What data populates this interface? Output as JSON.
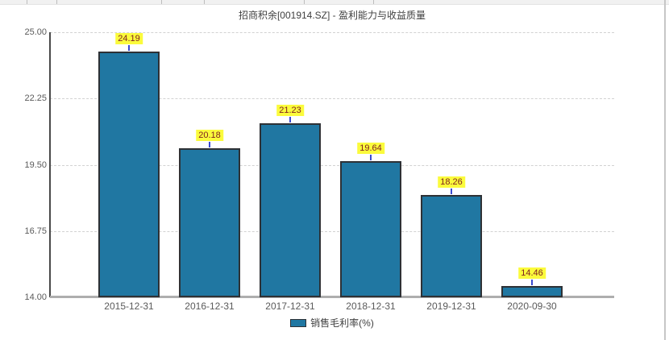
{
  "header": {
    "title": "招商积余[001914.SZ] - 盈利能力与收益质量"
  },
  "chart_data": {
    "type": "bar",
    "title": "招商积余[001914.SZ] - 盈利能力与收益质量",
    "categories": [
      "2015-12-31",
      "2016-12-31",
      "2017-12-31",
      "2018-12-31",
      "2019-12-31",
      "2020-09-30"
    ],
    "series": [
      {
        "name": "销售毛利率(%)",
        "values": [
          24.19,
          20.18,
          21.23,
          19.64,
          18.26,
          14.46
        ]
      }
    ],
    "value_labels": [
      "24.19",
      "20.18",
      "21.23",
      "19.64",
      "18.26",
      "14.46"
    ],
    "ylim": [
      14.0,
      25.0
    ],
    "y_tick_labels": [
      "25.00",
      "22.25",
      "19.50",
      "16.75",
      "14.00"
    ],
    "y_tick_values": [
      25.0,
      22.25,
      19.5,
      16.75,
      14.0
    ],
    "grid": "horizontal-dashed",
    "legend_position": "bottom-center",
    "colors": {
      "bar_fill": "#2077a2",
      "bar_border": "#2e3135",
      "value_label_bg": "#fbfb3c",
      "value_label_text": "#7f2121",
      "connector": "#3a4ad0",
      "axis_line": "#4a4a4a",
      "baseline": "#aeaeae",
      "gridline": "#d2d2d2",
      "tick_text": "#5a5a5a"
    }
  },
  "legend": {
    "items": [
      {
        "label": "销售毛利率(%)",
        "swatch_color": "#2077a2"
      }
    ]
  }
}
